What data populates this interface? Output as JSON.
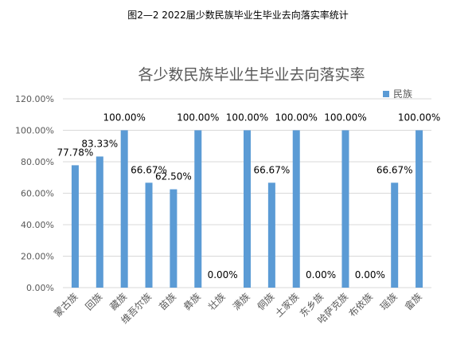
{
  "page_title": "图2—2  2022届少数民族毕业生毕业去向落实率统计",
  "colors": {
    "bar": "#5B9BD5",
    "grid": "#D9D9D9",
    "axis_text": "#595959"
  },
  "chart_data": {
    "type": "bar",
    "title": "各少数民族毕业生毕业去向落实率",
    "xlabel": "",
    "ylabel": "",
    "ylim": [
      0,
      120
    ],
    "yticks": [
      "0.00%",
      "20.00%",
      "40.00%",
      "60.00%",
      "80.00%",
      "100.00%",
      "120.00%"
    ],
    "grid": true,
    "legend_position": "top-right",
    "categories": [
      "蒙古族",
      "回族",
      "藏族",
      "维吾尔族",
      "苗族",
      "彝族",
      "壮族",
      "满族",
      "侗族",
      "土家族",
      "东乡族",
      "哈萨克族",
      "布依族",
      "瑶族",
      "畲族"
    ],
    "series": [
      {
        "name": "民族",
        "values": [
          77.78,
          83.33,
          100,
          66.67,
          62.5,
          100,
          0,
          100,
          66.67,
          100,
          0,
          100,
          0,
          66.67,
          100
        ],
        "labels": [
          "77.78%",
          "83.33%",
          "100.00%",
          "66.67%",
          "62.50%",
          "100.00%",
          "0.00%",
          "100.00%",
          "66.67%",
          "100.00%",
          "0.00%",
          "100.00%",
          "0.00%",
          "66.67%",
          "100.00%"
        ]
      }
    ]
  }
}
